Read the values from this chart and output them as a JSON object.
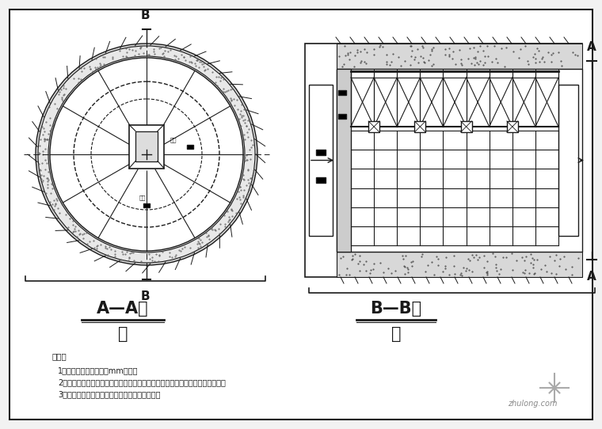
{
  "bg_color": "#f2f2f2",
  "line_color": "#1a1a1a",
  "title1": "A—A剑",
  "title1_sub": "面",
  "title2": "B—B剑",
  "title2_sub": "面",
  "note_title": "说明：",
  "notes": [
    "1、图中尺寸均以毫米（mm）计；",
    "2、本台车为全断面针架钉模台车，主要由液压支腿、针架、及模板三部分组成。",
    "3、模板通过设在针架端头的液压齿条机扇引动。"
  ],
  "watermark": "zhulong.com",
  "concrete_color": "#e0e0e0",
  "concrete_dot_color": "#aaaaaa"
}
